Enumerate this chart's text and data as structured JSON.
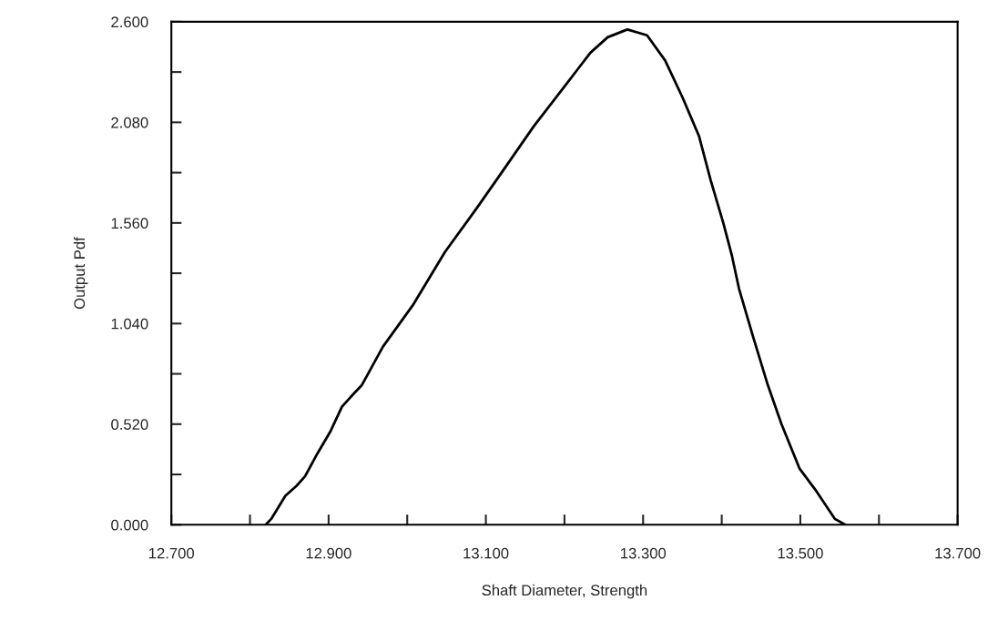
{
  "chart_data": {
    "type": "line",
    "xlabel": "Shaft Diameter, Strength",
    "ylabel": "Output Pdf",
    "xlim": [
      12.7,
      13.7
    ],
    "ylim": [
      0,
      2.6
    ],
    "xticks": [
      {
        "value": 12.7,
        "label": "12.700"
      },
      {
        "value": 12.8,
        "label": null
      },
      {
        "value": 12.9,
        "label": "12.900"
      },
      {
        "value": 13.0,
        "label": null
      },
      {
        "value": 13.1,
        "label": "13.100"
      },
      {
        "value": 13.2,
        "label": null
      },
      {
        "value": 13.3,
        "label": "13.300"
      },
      {
        "value": 13.4,
        "label": null
      },
      {
        "value": 13.5,
        "label": "13.500"
      },
      {
        "value": 13.6,
        "label": null
      },
      {
        "value": 13.7,
        "label": "13.700"
      }
    ],
    "yticks": [
      {
        "value": 0,
        "label": "0.000"
      },
      {
        "value": 0.26,
        "label": null
      },
      {
        "value": 0.52,
        "label": "0.520"
      },
      {
        "value": 0.78,
        "label": null
      },
      {
        "value": 1.04,
        "label": "1.040"
      },
      {
        "value": 1.3,
        "label": null
      },
      {
        "value": 1.56,
        "label": "1.560"
      },
      {
        "value": 1.82,
        "label": null
      },
      {
        "value": 2.08,
        "label": "2.080"
      },
      {
        "value": 2.34,
        "label": null
      },
      {
        "value": 2.6,
        "label": "2.600"
      }
    ],
    "grid": false,
    "legend": false,
    "series": [
      {
        "color": "#000000",
        "x": [
          12.82,
          12.827,
          12.845,
          12.859,
          12.87,
          12.886,
          12.902,
          12.917,
          12.928,
          12.942,
          12.969,
          13.008,
          13.048,
          13.089,
          13.12,
          13.161,
          13.199,
          13.216,
          13.233,
          13.255,
          13.28,
          13.305,
          13.328,
          13.35,
          13.371,
          13.386,
          13.402,
          13.413,
          13.422,
          13.44,
          13.458,
          13.476,
          13.499,
          13.521,
          13.544,
          13.557
        ],
        "values": [
          0,
          0.03,
          0.15,
          0.2,
          0.25,
          0.37,
          0.48,
          0.61,
          0.66,
          0.72,
          0.92,
          1.14,
          1.41,
          1.64,
          1.82,
          2.06,
          2.26,
          2.35,
          2.44,
          2.52,
          2.56,
          2.53,
          2.4,
          2.21,
          2.01,
          1.78,
          1.56,
          1.39,
          1.22,
          0.97,
          0.73,
          0.52,
          0.29,
          0.17,
          0.03,
          0
        ]
      }
    ]
  }
}
